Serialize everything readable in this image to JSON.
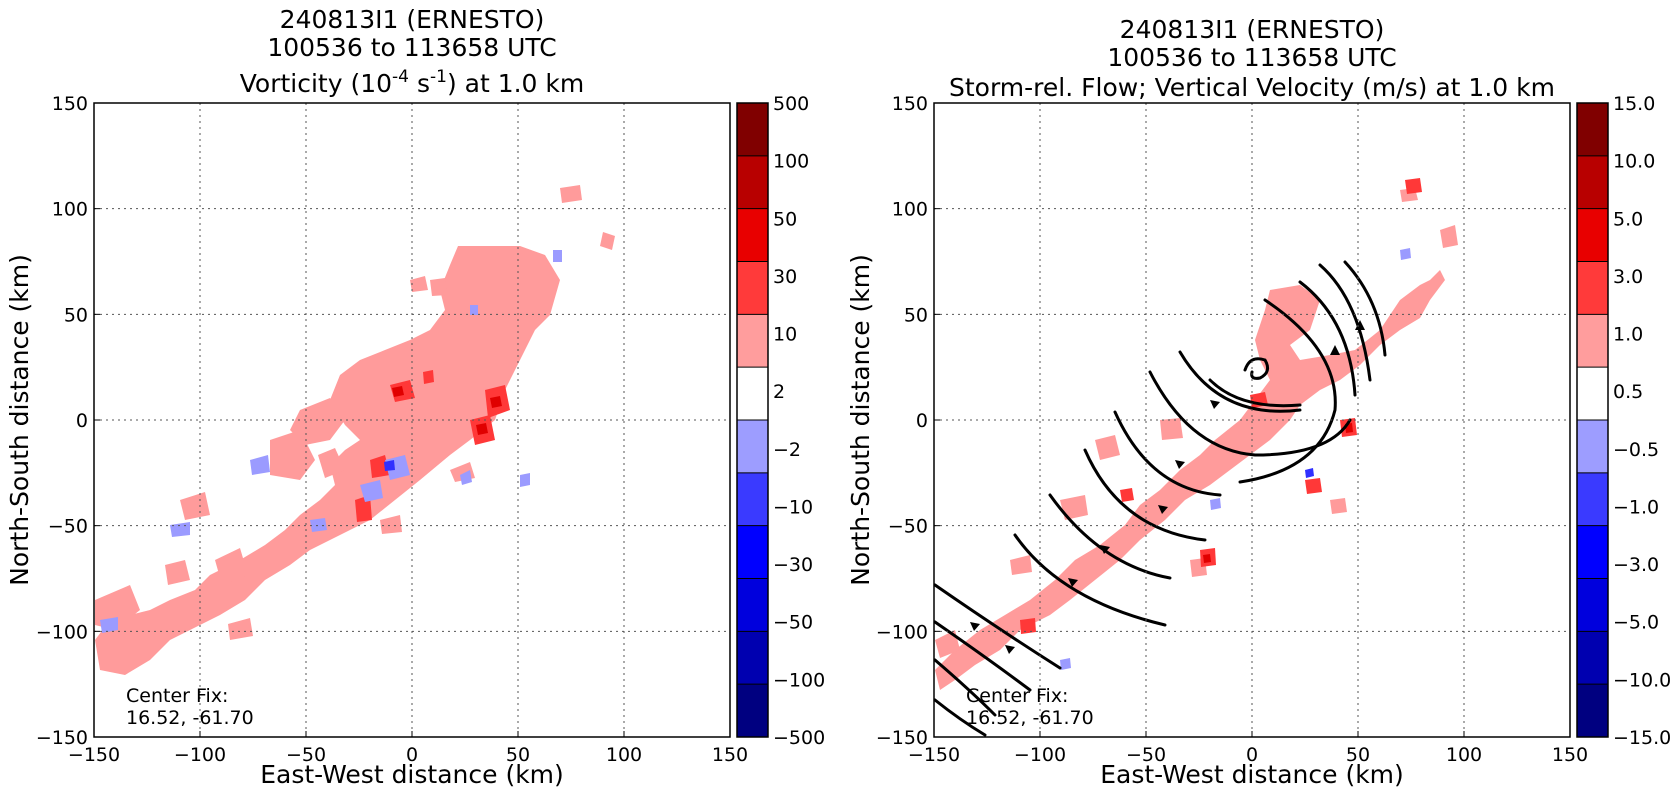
{
  "colors": {
    "pink": "#ff9b9b",
    "red": "#ff3838",
    "darkred": "#e00000",
    "blue_light": "#9b9bff",
    "blue": "#3030ff",
    "colorbar": [
      "#000080",
      "#0000b0",
      "#0000dd",
      "#0000ff",
      "#3a3aff",
      "#9d9dff",
      "#ffffff",
      "#ff9d9d",
      "#ff3a3a",
      "#e80000",
      "#b80000",
      "#800000"
    ],
    "streamline": "#000000"
  },
  "chart_data": [
    {
      "type": "heatmap",
      "title": [
        "240813I1 (ERNESTO)",
        "100536 to 113658 UTC"
      ],
      "title_line3": {
        "pre": "Vorticity (10",
        "sup1": "-4",
        "mid": " s",
        "sup2": "-1",
        "post": ") at 1.0 km"
      },
      "xlabel": "East-West distance (km)",
      "ylabel": "North-South distance (km)",
      "xlim": [
        -150,
        150
      ],
      "ylim": [
        -150,
        150
      ],
      "xticks": [
        -150,
        -100,
        -50,
        0,
        50,
        100,
        150
      ],
      "yticks": [
        -150,
        -100,
        -50,
        0,
        50,
        100,
        150
      ],
      "xtick_labels": [
        "−150",
        "−100",
        "−50",
        "0",
        "50",
        "100",
        "150"
      ],
      "ytick_labels": [
        "−150",
        "−100",
        "−50",
        "0",
        "50",
        "100",
        "150"
      ],
      "grid": true,
      "colorbar_labels": [
        "500",
        "100",
        "50",
        "30",
        "10",
        "2",
        "−2",
        "−10",
        "−30",
        "−50",
        "−100",
        "−500"
      ],
      "annotation": [
        "Center Fix:",
        "16.52, -61.70"
      ]
    },
    {
      "type": "heatmap",
      "title": [
        "240813I1 (ERNESTO)",
        "100536 to 113658 UTC",
        "Storm-rel. Flow; Vertical Velocity (m/s) at 1.0 km"
      ],
      "xlabel": "East-West distance (km)",
      "ylabel": "North-South distance (km)",
      "xlim": [
        -150,
        150
      ],
      "ylim": [
        -150,
        150
      ],
      "xticks": [
        -150,
        -100,
        -50,
        0,
        50,
        100,
        150
      ],
      "yticks": [
        -150,
        -100,
        -50,
        0,
        50,
        100,
        150
      ],
      "xtick_labels": [
        "−150",
        "−100",
        "−50",
        "0",
        "50",
        "100",
        "150"
      ],
      "ytick_labels": [
        "−150",
        "−100",
        "−50",
        "0",
        "50",
        "100",
        "150"
      ],
      "grid": true,
      "colorbar_labels": [
        "15.0",
        "10.0",
        "5.0",
        "3.0",
        "1.0",
        "0.5",
        "−0.5",
        "−1.0",
        "−3.0",
        "−5.0",
        "−10.0",
        "−15.0"
      ],
      "annotation": [
        "Center Fix:",
        "16.52, -61.70"
      ]
    }
  ]
}
